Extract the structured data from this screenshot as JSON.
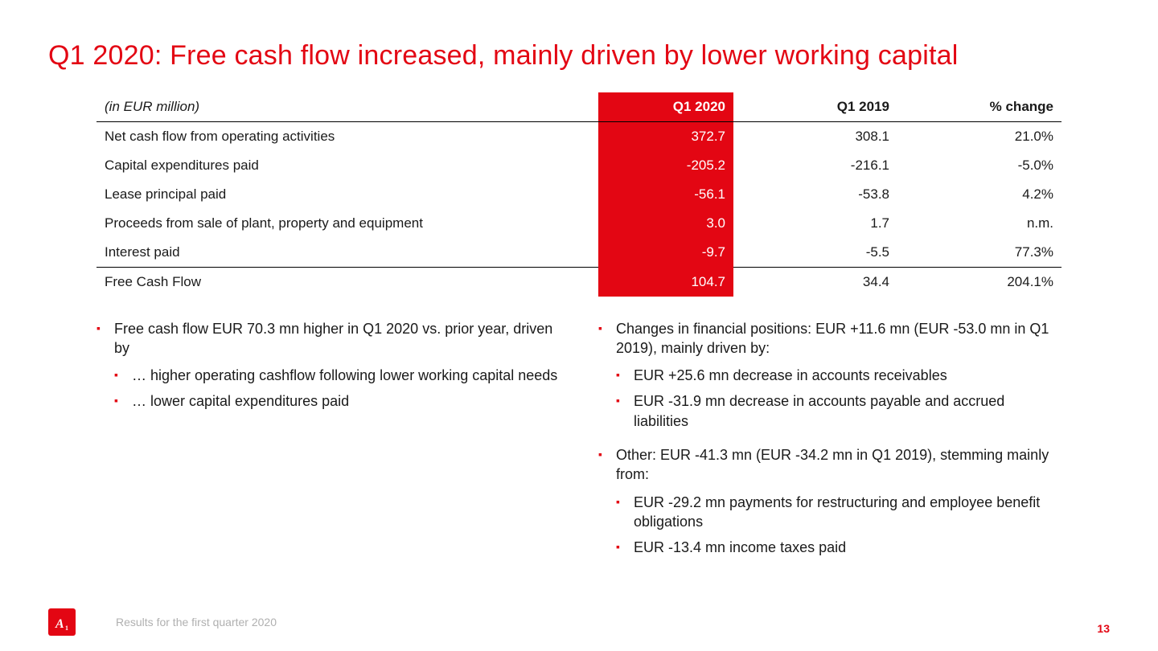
{
  "title": "Q1 2020: Free cash flow increased, mainly driven by lower working capital",
  "table": {
    "header_label": "(in EUR million)",
    "columns": [
      "Q1 2020",
      "Q1 2019",
      "% change"
    ],
    "highlight_column_index": 0,
    "highlight_bg": "#e30613",
    "highlight_fg": "#ffffff",
    "rows": [
      {
        "label": "Net cash flow from operating activities",
        "values": [
          "372.7",
          "308.1",
          "21.0%"
        ]
      },
      {
        "label": "Capital expenditures paid",
        "values": [
          "-205.2",
          "-216.1",
          "-5.0%"
        ]
      },
      {
        "label": "Lease principal paid",
        "values": [
          "-56.1",
          "-53.8",
          "4.2%"
        ]
      },
      {
        "label": "Proceeds from sale of plant, property and equipment",
        "values": [
          "3.0",
          "1.7",
          "n.m."
        ]
      },
      {
        "label": "Interest paid",
        "values": [
          "-9.7",
          "-5.5",
          "77.3%"
        ]
      }
    ],
    "total_row": {
      "label": "Free Cash Flow",
      "values": [
        "104.7",
        "34.4",
        "204.1%"
      ]
    }
  },
  "left_bullets": [
    {
      "text": "Free cash flow EUR 70.3 mn higher in Q1 2020 vs. prior year, driven by",
      "sub": [
        "… higher operating cashflow following lower working capital needs",
        "… lower capital expenditures paid"
      ]
    }
  ],
  "right_bullets": [
    {
      "text": "Changes in financial positions: EUR +11.6 mn (EUR -53.0 mn in Q1 2019), mainly driven by:",
      "sub": [
        "EUR +25.6 mn decrease in accounts receivables",
        "EUR -31.9 mn decrease in accounts payable and accrued liabilities"
      ]
    },
    {
      "text": "Other: EUR -41.3 mn (EUR -34.2 mn in Q1 2019), stemming mainly from:",
      "sub": [
        "EUR -29.2 mn payments for restructuring and employee benefit obligations",
        "EUR -13.4 mn income taxes paid"
      ]
    }
  ],
  "footer": {
    "text": "Results for the first quarter 2020",
    "page_number": "13",
    "logo_letter": "A",
    "logo_sub": "1"
  },
  "colors": {
    "brand": "#e30613",
    "text": "#1a1a1a",
    "footer_text": "#b0b0b0",
    "background": "#ffffff"
  }
}
